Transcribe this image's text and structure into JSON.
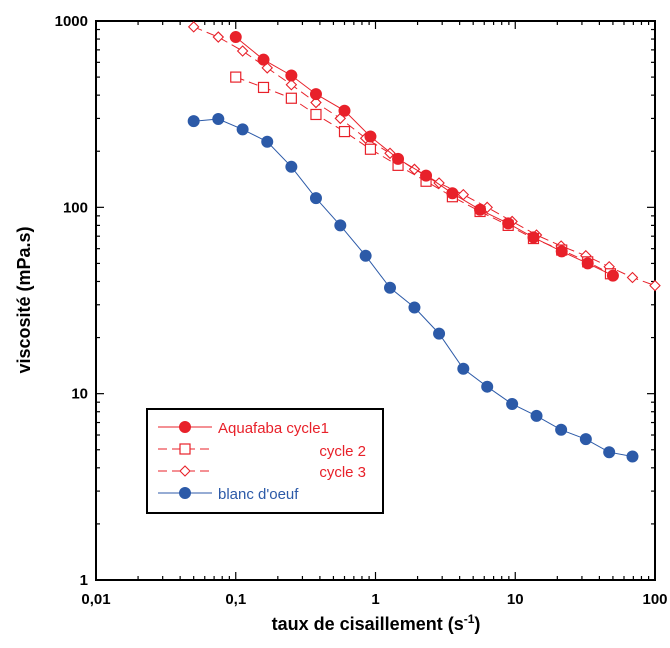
{
  "chart_data": {
    "type": "scatter",
    "xscale": "log",
    "yscale": "log",
    "xlim": [
      0.01,
      100
    ],
    "ylim": [
      1,
      1000
    ],
    "xlabel": "taux de cisaillement (s",
    "xlabel_sup": "-1",
    "xlabel_end": ")",
    "ylabel": "viscosité (mPa.s)",
    "x_ticks": [
      {
        "value": 0.01,
        "label": "0,01"
      },
      {
        "value": 0.1,
        "label": "0,1"
      },
      {
        "value": 1,
        "label": "1"
      },
      {
        "value": 10,
        "label": "10"
      },
      {
        "value": 100,
        "label": "100"
      }
    ],
    "y_ticks": [
      {
        "value": 1,
        "label": "1"
      },
      {
        "value": 10,
        "label": "10"
      },
      {
        "value": 100,
        "label": "100"
      },
      {
        "value": 1000,
        "label": "1000"
      }
    ],
    "grid": false,
    "legend_position": "bottom-left",
    "series": [
      {
        "name": "Aquafaba cycle1",
        "color": "#e8212a",
        "marker": "filled-circle",
        "line": "solid",
        "points": [
          [
            0.1,
            820
          ],
          [
            0.158,
            620
          ],
          [
            0.25,
            510
          ],
          [
            0.375,
            405
          ],
          [
            0.6,
            330
          ],
          [
            0.92,
            240
          ],
          [
            1.45,
            182
          ],
          [
            2.3,
            148
          ],
          [
            3.55,
            119
          ],
          [
            5.6,
            97
          ],
          [
            8.9,
            82
          ],
          [
            13.5,
            69
          ],
          [
            21.5,
            58
          ],
          [
            33,
            50
          ],
          [
            50,
            43
          ]
        ]
      },
      {
        "name": "cycle 2",
        "color": "#e8212a",
        "marker": "open-square",
        "line": "dashed",
        "points": [
          [
            0.1,
            500
          ],
          [
            0.158,
            440
          ],
          [
            0.25,
            385
          ],
          [
            0.375,
            315
          ],
          [
            0.6,
            255
          ],
          [
            0.92,
            205
          ],
          [
            1.45,
            168
          ],
          [
            2.3,
            138
          ],
          [
            3.55,
            114
          ],
          [
            5.6,
            95
          ],
          [
            8.9,
            80
          ],
          [
            13.5,
            68
          ],
          [
            21.5,
            59
          ],
          [
            33,
            51
          ],
          [
            48,
            44
          ]
        ]
      },
      {
        "name": "cycle 3",
        "color": "#e8212a",
        "marker": "open-diamond",
        "line": "dashed",
        "points": [
          [
            0.05,
            930
          ],
          [
            0.075,
            820
          ],
          [
            0.112,
            690
          ],
          [
            0.168,
            560
          ],
          [
            0.25,
            455
          ],
          [
            0.375,
            365
          ],
          [
            0.56,
            300
          ],
          [
            0.85,
            235
          ],
          [
            1.27,
            195
          ],
          [
            1.9,
            160
          ],
          [
            2.85,
            135
          ],
          [
            4.25,
            117
          ],
          [
            6.3,
            100
          ],
          [
            9.5,
            84
          ],
          [
            14.2,
            71
          ],
          [
            21.3,
            62
          ],
          [
            32,
            55
          ],
          [
            47,
            48
          ],
          [
            69,
            42
          ],
          [
            100,
            38
          ]
        ]
      },
      {
        "name": "blanc d'oeuf",
        "color": "#2c5aa8",
        "marker": "filled-circle",
        "line": "solid",
        "points": [
          [
            0.05,
            290
          ],
          [
            0.075,
            298
          ],
          [
            0.112,
            262
          ],
          [
            0.168,
            225
          ],
          [
            0.25,
            165
          ],
          [
            0.375,
            112
          ],
          [
            0.56,
            80
          ],
          [
            0.85,
            55
          ],
          [
            1.27,
            37
          ],
          [
            1.9,
            29
          ],
          [
            2.85,
            21
          ],
          [
            4.25,
            13.6
          ],
          [
            6.3,
            10.9
          ],
          [
            9.5,
            8.8
          ],
          [
            14.2,
            7.6
          ],
          [
            21.3,
            6.4
          ],
          [
            32,
            5.7
          ],
          [
            47,
            4.85
          ],
          [
            69,
            4.6
          ]
        ]
      }
    ]
  }
}
